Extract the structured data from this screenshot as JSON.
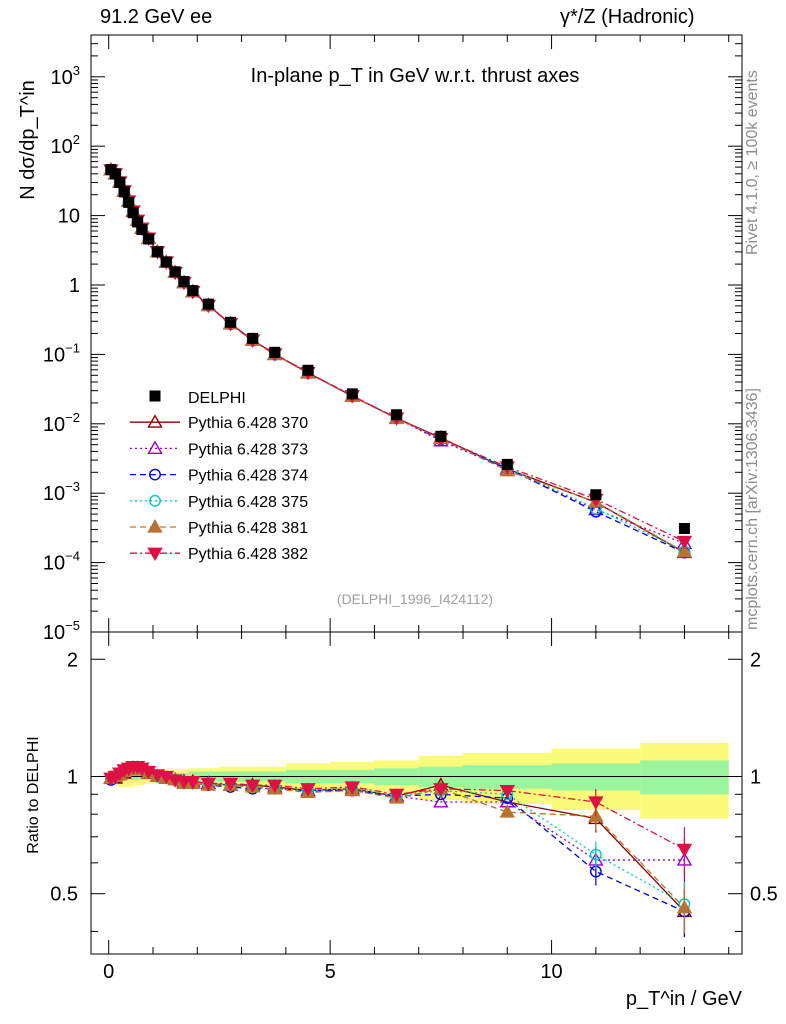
{
  "header": {
    "left": "91.2 GeV ee",
    "right": "γ*/Z (Hadronic)"
  },
  "side": {
    "rivet": "Rivet 4.1.0, ≥ 100k events",
    "mcplots": "mcplots.cern.ch [arXiv:1306.3436]"
  },
  "chart_data": {
    "type": "line",
    "title": "In-plane p_T in GeV w.r.t. thrust axes",
    "analysis_tag": "(DELPHI_1996_I424112)",
    "ylabel": "N dσ/dp_T^in",
    "ratio_ylabel": "Ratio to DELPHI",
    "xlabel": "p_T^in / GeV",
    "xlim": [
      -0.4,
      14.3
    ],
    "ylim": [
      1e-05,
      4000
    ],
    "ratio_ylim": [
      0.35,
      2.35
    ],
    "xticks": [
      0,
      5,
      10
    ],
    "yticks": [
      "10^-5",
      "10^-4",
      "10^-3",
      "10^-2",
      "10^-1",
      "1",
      "10",
      "10^2",
      "10^3"
    ],
    "ratio_yticks": [
      0.5,
      1,
      2
    ],
    "x": [
      0.05,
      0.15,
      0.25,
      0.35,
      0.45,
      0.55,
      0.65,
      0.75,
      0.9,
      1.1,
      1.3,
      1.5,
      1.7,
      1.9,
      2.25,
      2.75,
      3.25,
      3.75,
      4.5,
      5.5,
      6.5,
      7.5,
      9.0,
      11.0,
      13.0
    ],
    "data": {
      "name": "DELPHI",
      "values": [
        46,
        40,
        30,
        22,
        15.5,
        11,
        8.1,
        6.3,
        4.6,
        3.0,
        2.15,
        1.55,
        1.12,
        0.83,
        0.53,
        0.29,
        0.17,
        0.107,
        0.059,
        0.027,
        0.0135,
        0.0066,
        0.0026,
        0.00095,
        0.00031
      ],
      "band_edges": [
        0,
        0.2,
        0.4,
        0.6,
        0.8,
        1.0,
        1.4,
        1.8,
        2.5,
        3.0,
        4.0,
        5.0,
        6.0,
        7.0,
        8.0,
        10.0,
        12.0,
        14.0
      ],
      "band_inner": [
        0.02,
        0.02,
        0.02,
        0.02,
        0.02,
        0.02,
        0.02,
        0.03,
        0.03,
        0.03,
        0.04,
        0.04,
        0.05,
        0.06,
        0.07,
        0.08,
        0.1,
        0.12
      ],
      "band_outer": [
        0.04,
        0.06,
        0.06,
        0.05,
        0.04,
        0.04,
        0.04,
        0.05,
        0.06,
        0.06,
        0.08,
        0.09,
        0.1,
        0.13,
        0.15,
        0.18,
        0.22,
        0.26
      ]
    },
    "series": [
      {
        "name": "Pythia 6.428 370",
        "color": "#8b0000",
        "marker": "triangle-open",
        "dash": "",
        "ratio": [
          0.99,
          0.99,
          1.01,
          1.02,
          1.04,
          1.05,
          1.05,
          1.04,
          1.02,
          1.0,
          0.99,
          0.98,
          0.97,
          0.97,
          0.96,
          0.95,
          0.95,
          0.94,
          0.92,
          0.93,
          0.89,
          0.95,
          0.86,
          0.78,
          0.45
        ]
      },
      {
        "name": "Pythia 6.428 373",
        "color": "#9400d3",
        "marker": "triangle-open",
        "dash": "2,3",
        "ratio": [
          0.99,
          1.0,
          1.01,
          1.03,
          1.04,
          1.05,
          1.05,
          1.04,
          1.02,
          1.0,
          0.99,
          0.98,
          0.97,
          0.96,
          0.96,
          0.95,
          0.94,
          0.93,
          0.92,
          0.92,
          0.89,
          0.86,
          0.86,
          0.61,
          0.61
        ]
      },
      {
        "name": "Pythia 6.428 374",
        "color": "#0000dd",
        "marker": "circle-open",
        "dash": "6,4",
        "ratio": [
          0.98,
          0.99,
          1.01,
          1.03,
          1.04,
          1.05,
          1.05,
          1.04,
          1.02,
          1.0,
          0.99,
          0.98,
          0.97,
          0.96,
          0.95,
          0.94,
          0.93,
          0.93,
          0.92,
          0.92,
          0.89,
          0.9,
          0.88,
          0.57,
          0.45
        ]
      },
      {
        "name": "Pythia 6.428 375",
        "color": "#00ccbb",
        "marker": "circle-open",
        "dash": "2,3",
        "ratio": [
          0.99,
          1.0,
          1.02,
          1.03,
          1.04,
          1.05,
          1.05,
          1.04,
          1.02,
          1.0,
          0.99,
          0.98,
          0.97,
          0.96,
          0.96,
          0.95,
          0.94,
          0.93,
          0.92,
          0.93,
          0.89,
          0.92,
          0.9,
          0.63,
          0.47
        ]
      },
      {
        "name": "Pythia 6.428 381",
        "color": "#b87333",
        "marker": "triangle-filled",
        "dash": "6,4",
        "ratio": [
          0.99,
          1.0,
          1.01,
          1.03,
          1.04,
          1.05,
          1.05,
          1.04,
          1.02,
          1.0,
          0.99,
          0.98,
          0.96,
          0.96,
          0.95,
          0.95,
          0.94,
          0.93,
          0.91,
          0.92,
          0.88,
          0.93,
          0.81,
          0.79,
          0.46
        ]
      },
      {
        "name": "Pythia 6.428 382",
        "color": "#dd1144",
        "marker": "triangle-down-filled",
        "dash": "7,3,2,3",
        "ratio": [
          0.99,
          1.0,
          1.02,
          1.04,
          1.05,
          1.06,
          1.06,
          1.05,
          1.03,
          1.01,
          1.0,
          0.98,
          0.97,
          0.97,
          0.96,
          0.96,
          0.95,
          0.95,
          0.93,
          0.94,
          0.9,
          0.93,
          0.92,
          0.86,
          0.65
        ]
      }
    ]
  }
}
